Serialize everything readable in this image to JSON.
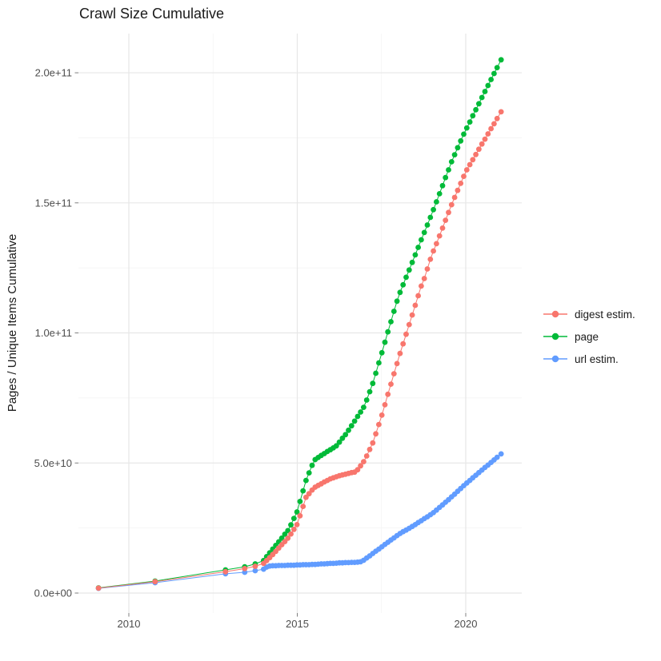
{
  "chart_data": {
    "type": "line",
    "title": "Crawl Size Cumulative",
    "xlabel": "",
    "ylabel": "Pages / Unique Items Cumulative",
    "grid": true,
    "value_unit": "billions (1e9) of pages / unique items, cumulative",
    "x_unit": "year (fractional = crawl date)",
    "x_ticks": {
      "major_years": [
        2010,
        2015,
        2020
      ],
      "minor_years": [
        2012.5,
        2017.5
      ],
      "labels": [
        "2010",
        "2015",
        "2020"
      ]
    },
    "y_ticks": {
      "major_values_billions": [
        0,
        50,
        100,
        150,
        200
      ],
      "minor_values_billions": [
        25,
        75,
        125,
        175
      ],
      "labels": [
        "0.0e+00",
        "5.0e+10",
        "1.0e+11",
        "1.5e+11",
        "2.0e+11"
      ]
    },
    "x_range_years": [
      2008.5,
      2021.7
    ],
    "y_range_billions": [
      -7.7,
      215
    ],
    "legend": {
      "position": "right",
      "entries": [
        "digest estim.",
        "page",
        "url estim."
      ]
    },
    "series": [
      {
        "name": "digest estim.",
        "color": "#F8766D",
        "points": [
          [
            2009.1,
            1.9
          ],
          [
            2010.78,
            4.4
          ],
          [
            2012.87,
            8.2
          ],
          [
            2013.44,
            9.4
          ],
          [
            2013.75,
            10.3
          ],
          [
            2014,
            11.4
          ],
          [
            2014.09,
            12.5
          ],
          [
            2014.18,
            13.6
          ],
          [
            2014.27,
            14.8
          ],
          [
            2014.36,
            16
          ],
          [
            2014.45,
            17.3
          ],
          [
            2014.54,
            18.6
          ],
          [
            2014.63,
            19.8
          ],
          [
            2014.72,
            21.1
          ],
          [
            2014.81,
            22.7
          ],
          [
            2014.9,
            24.5
          ],
          [
            2014.99,
            26.3
          ],
          [
            2015.08,
            29.7
          ],
          [
            2015.17,
            33.3
          ],
          [
            2015.26,
            36.8
          ],
          [
            2015.35,
            38.2
          ],
          [
            2015.44,
            39.6
          ],
          [
            2015.53,
            40.7
          ],
          [
            2015.62,
            41.4
          ],
          [
            2015.71,
            42
          ],
          [
            2015.8,
            42.7
          ],
          [
            2015.89,
            43.3
          ],
          [
            2015.98,
            43.9
          ],
          [
            2016.07,
            44.3
          ],
          [
            2016.16,
            44.7
          ],
          [
            2016.25,
            45.1
          ],
          [
            2016.34,
            45.4
          ],
          [
            2016.43,
            45.7
          ],
          [
            2016.52,
            46
          ],
          [
            2016.61,
            46.3
          ],
          [
            2016.7,
            46.5
          ],
          [
            2016.79,
            47.4
          ],
          [
            2016.88,
            48.9
          ],
          [
            2016.97,
            50.5
          ],
          [
            2017.06,
            52.7
          ],
          [
            2017.15,
            55.2
          ],
          [
            2017.24,
            57.7
          ],
          [
            2017.33,
            61.2
          ],
          [
            2017.42,
            64.8
          ],
          [
            2017.51,
            68.4
          ],
          [
            2017.6,
            72.4
          ],
          [
            2017.69,
            76.4
          ],
          [
            2017.78,
            80.3
          ],
          [
            2017.87,
            84.3
          ],
          [
            2017.96,
            88.2
          ],
          [
            2018.05,
            92.1
          ],
          [
            2018.14,
            95.8
          ],
          [
            2018.23,
            99.5
          ],
          [
            2018.32,
            103.2
          ],
          [
            2018.41,
            106.9
          ],
          [
            2018.5,
            110.6
          ],
          [
            2018.59,
            114.3
          ],
          [
            2018.68,
            118
          ],
          [
            2018.77,
            120.9
          ],
          [
            2018.86,
            124.6
          ],
          [
            2018.95,
            128.3
          ],
          [
            2019.04,
            131.5
          ],
          [
            2019.13,
            134.3
          ],
          [
            2019.22,
            137.3
          ],
          [
            2019.31,
            140.3
          ],
          [
            2019.4,
            143.3
          ],
          [
            2019.49,
            146.3
          ],
          [
            2019.58,
            149.3
          ],
          [
            2019.67,
            152.1
          ],
          [
            2019.76,
            154.8
          ],
          [
            2019.85,
            157.5
          ],
          [
            2019.94,
            160.2
          ],
          [
            2020.03,
            162.7
          ],
          [
            2020.12,
            164.7
          ],
          [
            2020.21,
            166.6
          ],
          [
            2020.3,
            168.6
          ],
          [
            2020.39,
            170.6
          ],
          [
            2020.48,
            172.6
          ],
          [
            2020.57,
            174.5
          ],
          [
            2020.66,
            176.5
          ],
          [
            2020.75,
            178.5
          ],
          [
            2020.84,
            180.4
          ],
          [
            2020.93,
            182.4
          ],
          [
            2021.05,
            185
          ]
        ]
      },
      {
        "name": "page",
        "color": "#00BA38",
        "points": [
          [
            2009.1,
            2
          ],
          [
            2010.78,
            4.6
          ],
          [
            2012.87,
            8.9
          ],
          [
            2013.44,
            10.1
          ],
          [
            2013.75,
            11.2
          ],
          [
            2014,
            12.5
          ],
          [
            2014.09,
            14
          ],
          [
            2014.18,
            15.5
          ],
          [
            2014.27,
            16.9
          ],
          [
            2014.36,
            18.3
          ],
          [
            2014.45,
            19.7
          ],
          [
            2014.54,
            21.1
          ],
          [
            2014.63,
            22.6
          ],
          [
            2014.72,
            24
          ],
          [
            2014.81,
            26.2
          ],
          [
            2014.9,
            28.7
          ],
          [
            2014.99,
            31.2
          ],
          [
            2015.08,
            35.2
          ],
          [
            2015.17,
            39.3
          ],
          [
            2015.26,
            43.3
          ],
          [
            2015.35,
            46.2
          ],
          [
            2015.44,
            49.1
          ],
          [
            2015.53,
            51.3
          ],
          [
            2015.62,
            52.1
          ],
          [
            2015.71,
            52.9
          ],
          [
            2015.8,
            53.6
          ],
          [
            2015.89,
            54.4
          ],
          [
            2015.98,
            55.1
          ],
          [
            2016.07,
            55.8
          ],
          [
            2016.16,
            56.6
          ],
          [
            2016.25,
            58
          ],
          [
            2016.34,
            59.5
          ],
          [
            2016.43,
            60.9
          ],
          [
            2016.52,
            62.6
          ],
          [
            2016.61,
            64.3
          ],
          [
            2016.7,
            66.1
          ],
          [
            2016.79,
            67.9
          ],
          [
            2016.88,
            69.6
          ],
          [
            2016.97,
            71.4
          ],
          [
            2017.06,
            74.2
          ],
          [
            2017.15,
            77.4
          ],
          [
            2017.24,
            80.6
          ],
          [
            2017.33,
            84.5
          ],
          [
            2017.42,
            88.5
          ],
          [
            2017.51,
            92.4
          ],
          [
            2017.6,
            96.4
          ],
          [
            2017.69,
            100.4
          ],
          [
            2017.78,
            104.3
          ],
          [
            2017.87,
            108.3
          ],
          [
            2017.96,
            112.2
          ],
          [
            2018.05,
            115.6
          ],
          [
            2018.14,
            118.5
          ],
          [
            2018.23,
            121.4
          ],
          [
            2018.32,
            124.2
          ],
          [
            2018.41,
            127.1
          ],
          [
            2018.5,
            130
          ],
          [
            2018.59,
            132.9
          ],
          [
            2018.68,
            135.8
          ],
          [
            2018.77,
            138.6
          ],
          [
            2018.86,
            141.5
          ],
          [
            2018.95,
            144.4
          ],
          [
            2019.04,
            147.4
          ],
          [
            2019.13,
            150.4
          ],
          [
            2019.22,
            153.5
          ],
          [
            2019.31,
            156.6
          ],
          [
            2019.4,
            159.7
          ],
          [
            2019.49,
            162.7
          ],
          [
            2019.58,
            165.8
          ],
          [
            2019.67,
            168.5
          ],
          [
            2019.76,
            171.2
          ],
          [
            2019.85,
            173.8
          ],
          [
            2019.94,
            176.4
          ],
          [
            2020.03,
            178.8
          ],
          [
            2020.12,
            181.1
          ],
          [
            2020.21,
            183.5
          ],
          [
            2020.3,
            185.8
          ],
          [
            2020.39,
            188.1
          ],
          [
            2020.48,
            190.5
          ],
          [
            2020.57,
            192.8
          ],
          [
            2020.66,
            195.1
          ],
          [
            2020.75,
            197.4
          ],
          [
            2020.84,
            199.7
          ],
          [
            2020.93,
            202
          ],
          [
            2021.05,
            205
          ]
        ]
      },
      {
        "name": "url estim.",
        "color": "#619CFF",
        "points": [
          [
            2009.1,
            1.8
          ],
          [
            2010.78,
            4
          ],
          [
            2012.87,
            7.4
          ],
          [
            2013.44,
            8
          ],
          [
            2013.75,
            8.6
          ],
          [
            2014,
            9.2
          ],
          [
            2014.09,
            10
          ],
          [
            2014.18,
            10.4
          ],
          [
            2014.27,
            10.5
          ],
          [
            2014.36,
            10.5
          ],
          [
            2014.45,
            10.6
          ],
          [
            2014.54,
            10.6
          ],
          [
            2014.63,
            10.6
          ],
          [
            2014.72,
            10.7
          ],
          [
            2014.81,
            10.7
          ],
          [
            2014.9,
            10.7
          ],
          [
            2014.99,
            10.8
          ],
          [
            2015.08,
            10.8
          ],
          [
            2015.17,
            10.9
          ],
          [
            2015.26,
            10.9
          ],
          [
            2015.35,
            10.9
          ],
          [
            2015.44,
            11
          ],
          [
            2015.53,
            11
          ],
          [
            2015.62,
            11.1
          ],
          [
            2015.71,
            11.2
          ],
          [
            2015.8,
            11.2
          ],
          [
            2015.89,
            11.3
          ],
          [
            2015.98,
            11.4
          ],
          [
            2016.07,
            11.4
          ],
          [
            2016.16,
            11.5
          ],
          [
            2016.25,
            11.6
          ],
          [
            2016.34,
            11.6
          ],
          [
            2016.43,
            11.7
          ],
          [
            2016.52,
            11.7
          ],
          [
            2016.61,
            11.8
          ],
          [
            2016.7,
            11.8
          ],
          [
            2016.79,
            11.9
          ],
          [
            2016.88,
            12
          ],
          [
            2016.97,
            12.6
          ],
          [
            2017.06,
            13.5
          ],
          [
            2017.15,
            14.3
          ],
          [
            2017.24,
            15.2
          ],
          [
            2017.33,
            16.1
          ],
          [
            2017.42,
            16.9
          ],
          [
            2017.51,
            17.8
          ],
          [
            2017.6,
            18.7
          ],
          [
            2017.69,
            19.5
          ],
          [
            2017.78,
            20.4
          ],
          [
            2017.87,
            21.2
          ],
          [
            2017.96,
            22.1
          ],
          [
            2018.05,
            22.9
          ],
          [
            2018.14,
            23.6
          ],
          [
            2018.23,
            24.2
          ],
          [
            2018.32,
            24.9
          ],
          [
            2018.41,
            25.6
          ],
          [
            2018.5,
            26.3
          ],
          [
            2018.59,
            27.1
          ],
          [
            2018.68,
            27.8
          ],
          [
            2018.77,
            28.6
          ],
          [
            2018.86,
            29.3
          ],
          [
            2018.95,
            30.1
          ],
          [
            2019.04,
            30.9
          ],
          [
            2019.13,
            31.9
          ],
          [
            2019.22,
            32.9
          ],
          [
            2019.31,
            33.9
          ],
          [
            2019.4,
            34.9
          ],
          [
            2019.49,
            35.9
          ],
          [
            2019.58,
            37
          ],
          [
            2019.67,
            38
          ],
          [
            2019.76,
            39.1
          ],
          [
            2019.85,
            40.2
          ],
          [
            2019.94,
            41.3
          ],
          [
            2020.03,
            42.3
          ],
          [
            2020.12,
            43.3
          ],
          [
            2020.21,
            44.3
          ],
          [
            2020.3,
            45.3
          ],
          [
            2020.39,
            46.3
          ],
          [
            2020.48,
            47.3
          ],
          [
            2020.57,
            48.3
          ],
          [
            2020.66,
            49.2
          ],
          [
            2020.75,
            50.2
          ],
          [
            2020.84,
            51.2
          ],
          [
            2020.93,
            52.2
          ],
          [
            2021.05,
            53.5
          ]
        ]
      }
    ]
  }
}
